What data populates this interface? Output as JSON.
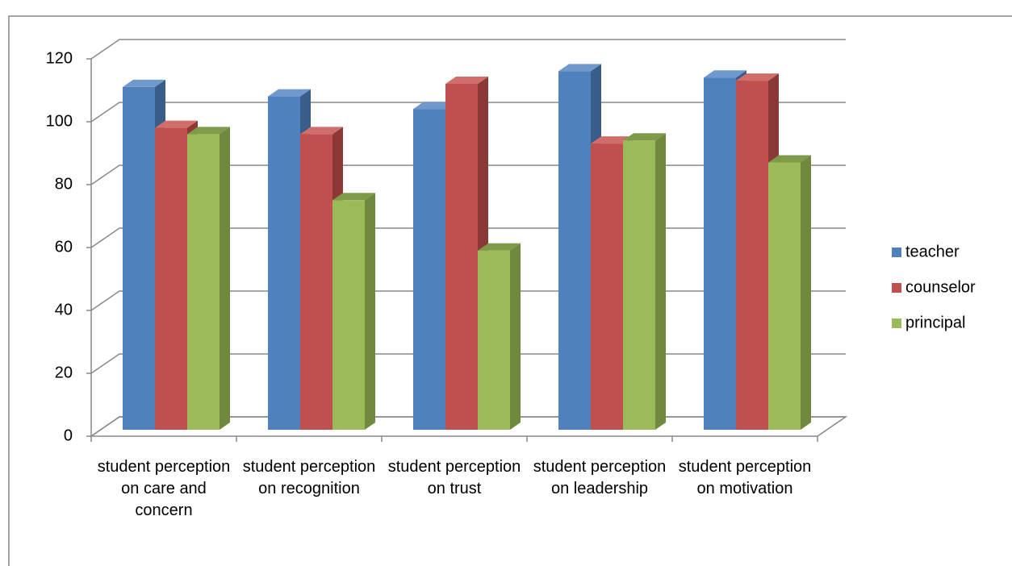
{
  "chart_data": {
    "type": "bar3d",
    "categories": [
      "student perception on care and concern",
      "student perception on recognition",
      "student perception on trust",
      "student perception on leadership",
      "student perception on motivation"
    ],
    "series": [
      {
        "name": "teacher",
        "color": "#4f81bd",
        "side": "#385d8a",
        "top": "#6f98cc",
        "values": [
          109,
          106,
          102,
          114,
          112
        ]
      },
      {
        "name": "counselor",
        "color": "#c0504d",
        "side": "#8c3836",
        "top": "#cf6e6b",
        "values": [
          96,
          94,
          110,
          91,
          111
        ]
      },
      {
        "name": "principal",
        "color": "#9bbb59",
        "side": "#71893f",
        "top": "#7f9a48",
        "values": [
          94,
          73,
          57,
          92,
          85
        ]
      }
    ],
    "ylim": [
      0,
      120
    ],
    "yticks": [
      0,
      20,
      40,
      60,
      80,
      100,
      120
    ],
    "grid": true,
    "legend": "right"
  }
}
